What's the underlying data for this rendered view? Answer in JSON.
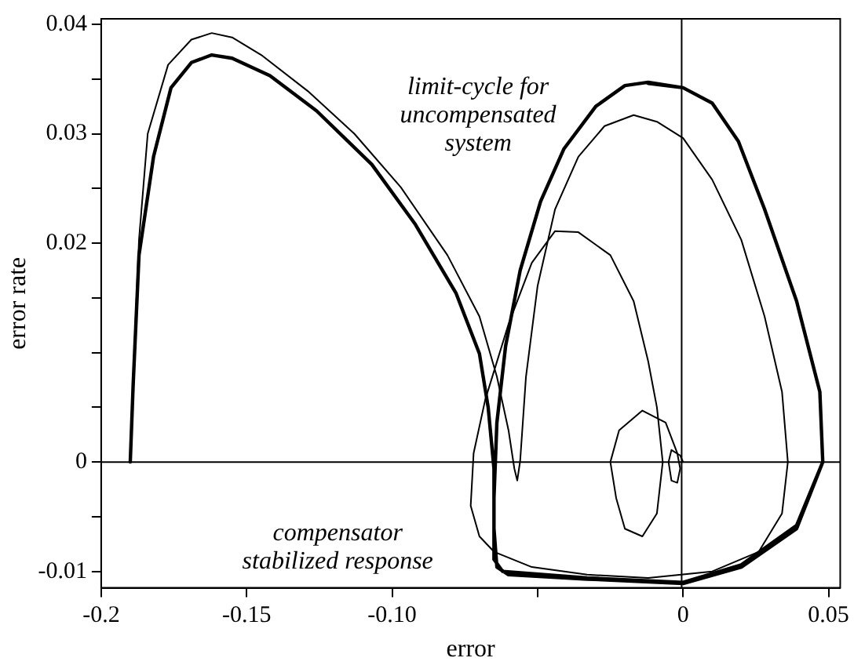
{
  "chart_data": {
    "type": "line",
    "xlabel": "error",
    "ylabel": "error rate",
    "xlim": [
      -0.2,
      0.054
    ],
    "ylim": [
      -0.0115,
      0.0405
    ],
    "xticks": [
      {
        "value": -0.2,
        "label": "-0.2"
      },
      -0.15,
      {
        "value": -0.1,
        "label": "-0.10"
      },
      {
        "value": -0.05,
        "label": null
      },
      0,
      0.05
    ],
    "yticks": [
      {
        "value": -0.01,
        "label": "-0.01"
      },
      {
        "value": -0.005,
        "label": null
      },
      0,
      {
        "value": 0.005,
        "label": null
      },
      {
        "value": 0.01,
        "label": null
      },
      {
        "value": 0.015,
        "label": null
      },
      0.02,
      {
        "value": 0.025,
        "label": null
      },
      0.03,
      {
        "value": 0.035,
        "label": null
      },
      0.04
    ],
    "grid": false,
    "legend": false,
    "marker": "none",
    "line_style": "solid",
    "ref_lines": [
      {
        "axis": "x",
        "value": -0.0005,
        "color": "#000000"
      },
      {
        "axis": "y",
        "value": 0,
        "color": "#000000"
      }
    ],
    "annotations": [
      "limit-cycle for\nuncompensated\nsystem",
      "compensator\nstabilized response"
    ],
    "series": [
      {
        "color": "#000000",
        "x": [
          -0.19,
          -0.189,
          -0.187,
          -0.182,
          -0.176,
          -0.169,
          -0.162,
          -0.155,
          -0.142,
          -0.126,
          -0.107,
          -0.092,
          -0.078,
          -0.07,
          -0.067,
          -0.065,
          -0.065,
          -0.064,
          -0.06,
          -0.033,
          0,
          0.02,
          0.039,
          0.048,
          0.047,
          0.039,
          0.028,
          0.019,
          0.01,
          0,
          -0.012,
          -0.02,
          -0.03,
          -0.041,
          -0.049,
          -0.056,
          -0.061,
          -0.064,
          -0.065,
          -0.065,
          -0.062,
          -0.033,
          0,
          0.02,
          0.039,
          0.048,
          0.047,
          0.039,
          0.028,
          0.019,
          0.01,
          0,
          -0.012
        ],
        "values": [
          0,
          0.0071,
          0.0189,
          0.0279,
          0.0342,
          0.0365,
          0.0372,
          0.0369,
          0.0353,
          0.0321,
          0.0272,
          0.0217,
          0.0154,
          0.0099,
          0.005,
          -0.0006,
          -0.0061,
          -0.0096,
          -0.0103,
          -0.0107,
          -0.0111,
          -0.0096,
          -0.0061,
          0,
          0.0064,
          0.0147,
          0.0231,
          0.0293,
          0.0328,
          0.0342,
          0.0347,
          0.0344,
          0.0325,
          0.0286,
          0.0238,
          0.0175,
          0.0106,
          0.0036,
          -0.0033,
          -0.0089,
          -0.01,
          -0.0106,
          -0.011,
          -0.0094,
          -0.0058,
          0,
          0.0064,
          0.0147,
          0.0231,
          0.0293,
          0.0328,
          0.0342,
          0.0346
        ]
      },
      {
        "color": "#000000",
        "x": [
          -0.19,
          -0.189,
          -0.187,
          -0.184,
          -0.177,
          -0.169,
          -0.162,
          -0.155,
          -0.145,
          -0.129,
          -0.113,
          -0.097,
          -0.081,
          -0.07,
          -0.064,
          -0.06,
          -0.058,
          -0.057,
          -0.056,
          -0.054,
          -0.05,
          -0.044,
          -0.036,
          -0.027,
          -0.017,
          -0.009,
          0,
          0.01,
          0.02,
          0.028,
          0.034,
          0.036,
          0.034,
          0.026,
          0.01,
          -0.012,
          -0.033,
          -0.052,
          -0.065,
          -0.07,
          -0.073,
          -0.072,
          -0.068,
          -0.06,
          -0.052,
          -0.044,
          -0.036,
          -0.025,
          -0.017,
          -0.012,
          -0.009,
          -0.007,
          -0.009,
          -0.014,
          -0.02,
          -0.023,
          -0.025,
          -0.022,
          -0.014,
          -0.006,
          -0.002,
          -0.001,
          -0.002,
          -0.004,
          -0.005,
          -0.004,
          -0.001,
          0
        ],
        "values": [
          0,
          0.0078,
          0.0203,
          0.03,
          0.0363,
          0.0386,
          0.0392,
          0.0388,
          0.0372,
          0.0339,
          0.03,
          0.0251,
          0.0189,
          0.0133,
          0.0078,
          0.0029,
          -0.0006,
          -0.0017,
          0.0001,
          0.0078,
          0.0161,
          0.0231,
          0.0279,
          0.0307,
          0.0317,
          0.0311,
          0.0296,
          0.0258,
          0.0203,
          0.0133,
          0.0064,
          0,
          -0.0047,
          -0.0082,
          -0.01,
          -0.0106,
          -0.0103,
          -0.0096,
          -0.0082,
          -0.0068,
          -0.004,
          0.0008,
          0.0057,
          0.0126,
          0.0182,
          0.0211,
          0.021,
          0.0189,
          0.0147,
          0.0092,
          0.005,
          0,
          -0.0047,
          -0.0068,
          -0.0061,
          -0.0033,
          0,
          0.0029,
          0.0047,
          0.0036,
          0.0008,
          -0.0006,
          -0.0019,
          -0.0017,
          0,
          0.0011,
          0.0006,
          0
        ]
      }
    ]
  }
}
